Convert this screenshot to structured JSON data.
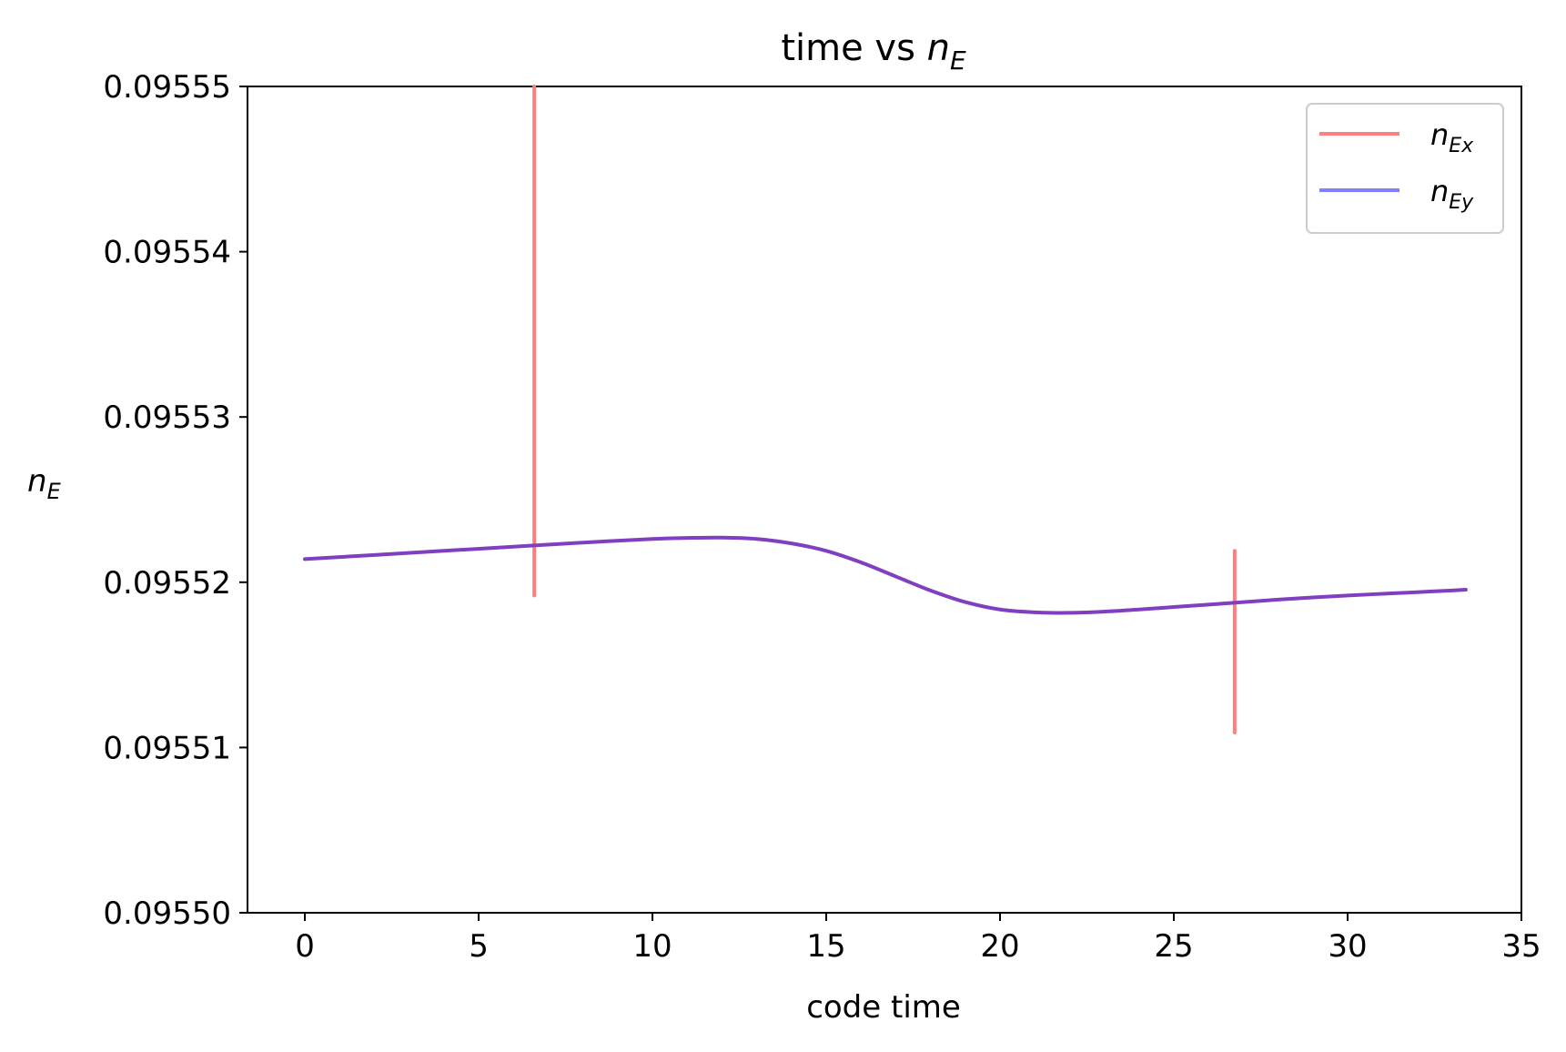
{
  "chart_data": {
    "type": "line",
    "title": {
      "text": "time vs ",
      "math_main": "n",
      "math_sub": "E"
    },
    "xlabel": "code time",
    "ylabel": {
      "main": "n",
      "sub": "E"
    },
    "xlim": [
      -1.65,
      35
    ],
    "ylim": [
      0.0955,
      0.09555
    ],
    "xticks": [
      0,
      5,
      10,
      15,
      20,
      25,
      30,
      35
    ],
    "xtick_labels": [
      "0",
      "5",
      "10",
      "15",
      "20",
      "25",
      "30",
      "35"
    ],
    "yticks": [
      0.0955,
      0.09551,
      0.09552,
      0.09553,
      0.09554,
      0.09555
    ],
    "ytick_labels": [
      "0.09550",
      "0.09551",
      "0.09552",
      "0.09553",
      "0.09554",
      "0.09555"
    ],
    "legend_position": "top-right",
    "series": [
      {
        "name_main": "n",
        "name_sub": "Ex",
        "color": "#ff7f7f",
        "segments": [
          {
            "x": 6.6,
            "y_min": 0.0955192,
            "y_max": 0.09555
          },
          {
            "x": 26.75,
            "y_min": 0.0955109,
            "y_max": 0.0955219
          }
        ]
      },
      {
        "name_main": "n",
        "name_sub": "Ey",
        "color": "#7f7fff",
        "x": [
          0,
          2,
          4,
          6,
          8,
          10,
          11,
          12,
          13,
          14,
          15,
          16,
          17,
          18,
          19,
          20,
          21,
          22,
          23,
          24,
          25,
          26,
          27,
          28,
          29,
          30,
          31,
          32,
          33,
          33.4
        ],
        "y": [
          0.0955214,
          0.09552165,
          0.0955219,
          0.09552215,
          0.0955224,
          0.09552262,
          0.09552268,
          0.0955227,
          0.09552262,
          0.09552235,
          0.0955219,
          0.0955212,
          0.09552035,
          0.0955195,
          0.0955188,
          0.09551835,
          0.09551818,
          0.09551815,
          0.09551822,
          0.09551835,
          0.0955185,
          0.09551865,
          0.0955188,
          0.09551895,
          0.09551908,
          0.0955192,
          0.0955193,
          0.0955194,
          0.0955195,
          0.09551955
        ]
      }
    ],
    "overlap_color": "#7f3fbf"
  }
}
